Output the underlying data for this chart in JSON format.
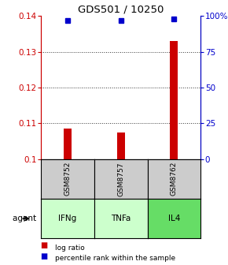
{
  "title": "GDS501 / 10250",
  "samples": [
    "GSM8752",
    "GSM8757",
    "GSM8762"
  ],
  "agents": [
    "IFNg",
    "TNFa",
    "IL4"
  ],
  "agent_colors": [
    "#ccffcc",
    "#ccffcc",
    "#66dd66"
  ],
  "log_ratios": [
    0.1085,
    0.1075,
    0.133
  ],
  "percentile_ranks": [
    97,
    97,
    98
  ],
  "log_ratio_baseline": 0.1,
  "ylim": [
    0.1,
    0.14
  ],
  "yticks": [
    0.1,
    0.11,
    0.12,
    0.13,
    0.14
  ],
  "ytick_labels": [
    "0.1",
    "0.11",
    "0.12",
    "0.13",
    "0.14"
  ],
  "right_yticks_pct": [
    0,
    25,
    50,
    75,
    100
  ],
  "right_ytick_labels": [
    "0",
    "25",
    "50",
    "75",
    "100%"
  ],
  "bar_color": "#cc0000",
  "point_color": "#0000cc",
  "sample_box_color": "#cccccc",
  "agent_label": "agent",
  "legend_items": [
    "log ratio",
    "percentile rank within the sample"
  ],
  "legend_colors": [
    "#cc0000",
    "#0000cc"
  ],
  "bar_width": 0.15
}
